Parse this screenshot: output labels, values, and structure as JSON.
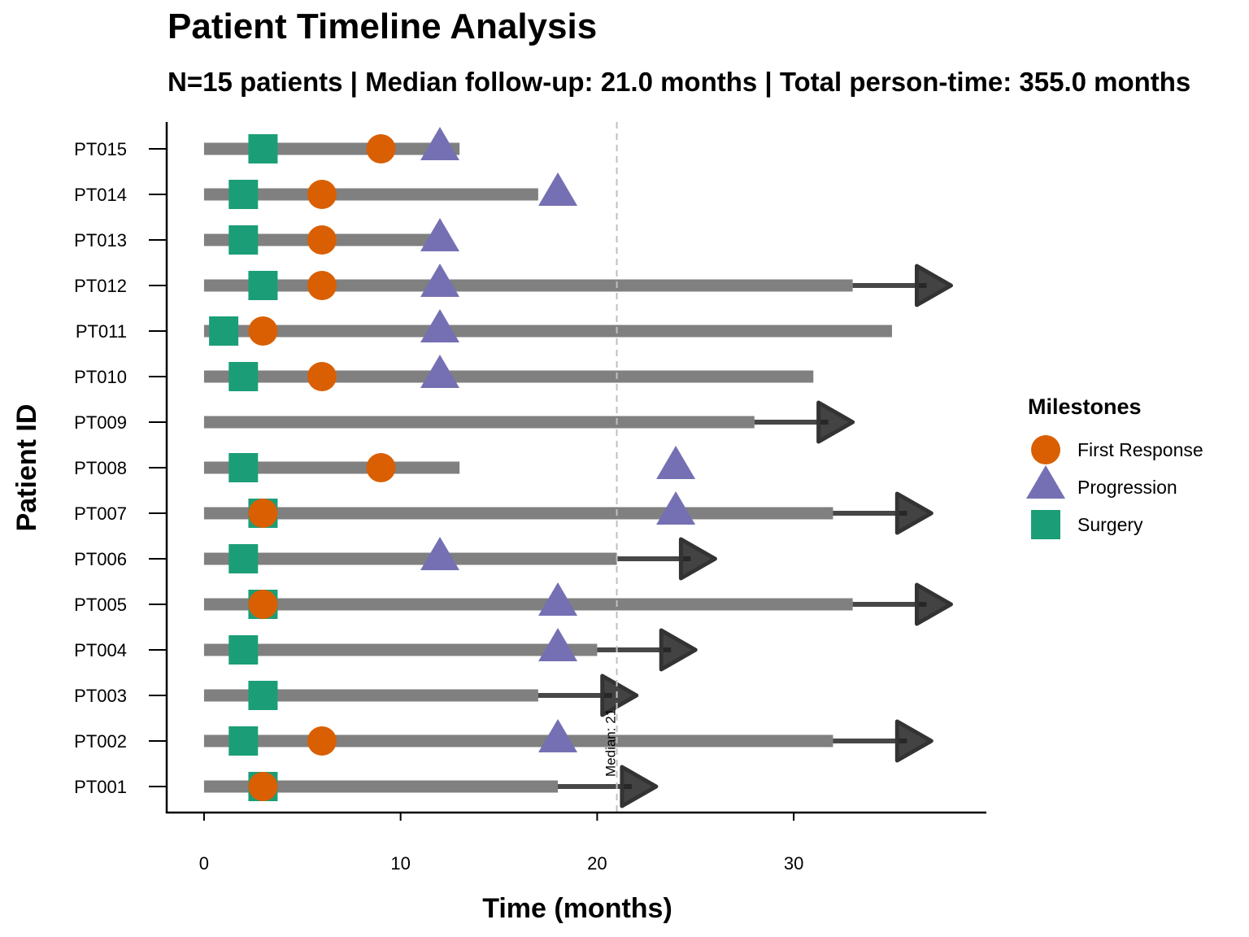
{
  "chart_data": {
    "type": "swimmer",
    "title": "Patient Timeline Analysis",
    "subtitle": "N=15 patients | Median follow-up: 21.0 months | Total person-time: 355.0 months",
    "xlabel": "Time (months)",
    "ylabel": "Patient ID",
    "xlim": [
      -1.9,
      39.8
    ],
    "x_ticks": [
      0,
      10,
      20,
      30
    ],
    "grid": false,
    "median_line": {
      "value": 21,
      "label": "Median: 21"
    },
    "legend": {
      "title": "Milestones",
      "position": "right",
      "items": [
        {
          "name": "First Response",
          "shape": "circle",
          "color": "#D95F02"
        },
        {
          "name": "Progression",
          "shape": "triangle",
          "color": "#7570B3"
        },
        {
          "name": "Surgery",
          "shape": "square",
          "color": "#1B9E77"
        }
      ]
    },
    "colors": {
      "bar": "#808080",
      "ongoing_arrow": "#333333",
      "median_line": "#c0c0c0"
    },
    "patients": [
      {
        "id": "PT001",
        "duration": 18,
        "ongoing": true,
        "arrow_end": 23,
        "surgery": 3,
        "response": 3,
        "progression": null
      },
      {
        "id": "PT002",
        "duration": 32,
        "ongoing": true,
        "arrow_end": 37,
        "surgery": 2,
        "response": 6,
        "progression": 18
      },
      {
        "id": "PT003",
        "duration": 17,
        "ongoing": true,
        "arrow_end": 22,
        "surgery": 3,
        "response": null,
        "progression": null
      },
      {
        "id": "PT004",
        "duration": 20,
        "ongoing": true,
        "arrow_end": 25,
        "surgery": 2,
        "response": null,
        "progression": 18
      },
      {
        "id": "PT005",
        "duration": 33,
        "ongoing": true,
        "arrow_end": 38,
        "surgery": 3,
        "response": 3,
        "progression": 18
      },
      {
        "id": "PT006",
        "duration": 21,
        "ongoing": true,
        "arrow_end": 26,
        "surgery": 2,
        "response": null,
        "progression": 12
      },
      {
        "id": "PT007",
        "duration": 32,
        "ongoing": true,
        "arrow_end": 37,
        "surgery": 3,
        "response": 3,
        "progression": 24
      },
      {
        "id": "PT008",
        "duration": 13,
        "ongoing": false,
        "arrow_end": null,
        "surgery": 2,
        "response": 9,
        "progression": 24
      },
      {
        "id": "PT009",
        "duration": 28,
        "ongoing": true,
        "arrow_end": 33,
        "surgery": null,
        "response": null,
        "progression": null
      },
      {
        "id": "PT010",
        "duration": 31,
        "ongoing": false,
        "arrow_end": null,
        "surgery": 2,
        "response": 6,
        "progression": 12
      },
      {
        "id": "PT011",
        "duration": 35,
        "ongoing": false,
        "arrow_end": null,
        "surgery": 1,
        "response": 3,
        "progression": 12
      },
      {
        "id": "PT012",
        "duration": 33,
        "ongoing": true,
        "arrow_end": 38,
        "surgery": 3,
        "response": 6,
        "progression": 12
      },
      {
        "id": "PT013",
        "duration": 12,
        "ongoing": false,
        "arrow_end": null,
        "surgery": 2,
        "response": 6,
        "progression": 12
      },
      {
        "id": "PT014",
        "duration": 17,
        "ongoing": false,
        "arrow_end": null,
        "surgery": 2,
        "response": 6,
        "progression": 18
      },
      {
        "id": "PT015",
        "duration": 13,
        "ongoing": false,
        "arrow_end": null,
        "surgery": 3,
        "response": 9,
        "progression": 12
      }
    ]
  }
}
